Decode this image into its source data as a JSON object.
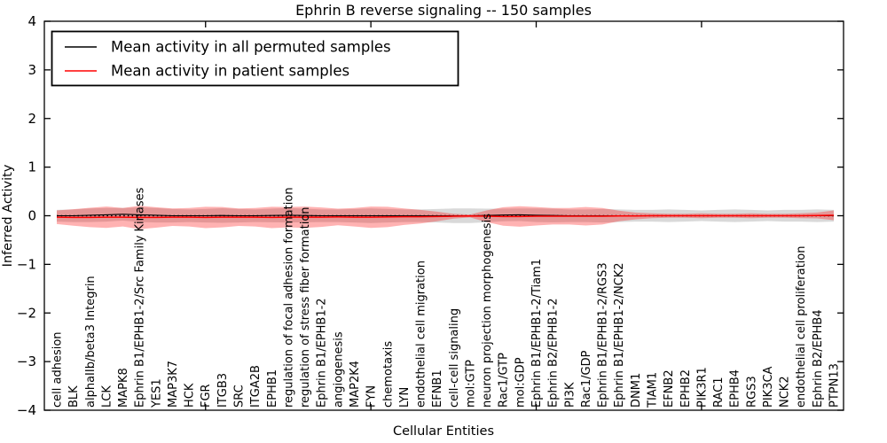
{
  "chart_data": {
    "type": "line",
    "title": "Ephrin B reverse signaling -- 150 samples",
    "xlabel": "Cellular Entities",
    "ylabel": "Inferred Activity",
    "ylim": [
      -4,
      4
    ],
    "yticks": [
      4,
      3,
      2,
      1,
      0,
      -1,
      -2,
      -3,
      -4
    ],
    "grid": false,
    "legend_position": "upper left",
    "categories": [
      "cell adhesion",
      "BLK",
      "alphaIIb/beta3 Integrin",
      "LCK",
      "MAPK8",
      "Ephrin B1/EPHB1-2/Src Family Kinases",
      "YES1",
      "MAP3K7",
      "HCK",
      "FGR",
      "ITGB3",
      "SRC",
      "ITGA2B",
      "EPHB1",
      "regulation of focal adhesion formation",
      "regulation of stress fiber formation",
      "Ephrin B1/EPHB1-2",
      "angiogenesis",
      "MAP2K4",
      "FYN",
      "chemotaxis",
      "LYN",
      "endothelial cell migration",
      "EFNB1",
      "cell-cell signaling",
      "mol:GTP",
      "neuron projection morphogenesis",
      "Rac1/GTP",
      "mol:GDP",
      "Ephrin B1/EPHB1-2/Tiam1",
      "Ephrin B2/EPHB1-2",
      "PI3K",
      "Rac1/GDP",
      "Ephrin B1/EPHB1-2/RGS3",
      "Ephrin B1/EPHB1-2/NCK2",
      "DNM1",
      "TIAM1",
      "EFNB2",
      "EPHB2",
      "PIK3R1",
      "RAC1",
      "EPHB4",
      "RGS3",
      "PIK3CA",
      "NCK2",
      "endothelial cell proliferation",
      "Ephrin B2/EPHB4",
      "PTPN13"
    ],
    "x_major_tick_indices": [
      9,
      19,
      29,
      39
    ],
    "series": [
      {
        "name": "Mean activity in all permuted samples",
        "color": "#000000",
        "style": "solid",
        "values": [
          0,
          0,
          0.01,
          0.02,
          0.03,
          0.02,
          0.01,
          0,
          0,
          0,
          0.005,
          0,
          0,
          0.005,
          0.01,
          0.005,
          0,
          0,
          0,
          0,
          0,
          0,
          0,
          0,
          0,
          0,
          0.005,
          0.015,
          0.02,
          0.01,
          0.005,
          0,
          0,
          0,
          0,
          0,
          0,
          0,
          0,
          0,
          0,
          0,
          0,
          0,
          0,
          0,
          0,
          0
        ]
      },
      {
        "name": "Mean activity in patient samples",
        "color": "#ff0000",
        "style": "solid",
        "values": [
          -0.03,
          -0.035,
          -0.035,
          -0.03,
          -0.03,
          -0.035,
          -0.035,
          -0.03,
          -0.03,
          -0.035,
          -0.03,
          -0.03,
          -0.03,
          -0.035,
          -0.03,
          -0.03,
          -0.03,
          -0.025,
          -0.03,
          -0.03,
          -0.025,
          -0.02,
          -0.02,
          -0.015,
          -0.01,
          -0.005,
          -0.01,
          -0.015,
          -0.015,
          -0.01,
          -0.01,
          -0.01,
          -0.01,
          -0.01,
          -0.005,
          -0.005,
          0,
          0,
          0,
          0,
          0,
          0,
          0,
          0,
          0,
          0,
          0.005,
          0.01
        ]
      }
    ],
    "bands": [
      {
        "name": "permuted-std-band",
        "center_series": 0,
        "color": "#808080",
        "opacity": 0.3,
        "half_widths": [
          0.12,
          0.13,
          0.14,
          0.14,
          0.13,
          0.15,
          0.15,
          0.14,
          0.13,
          0.14,
          0.15,
          0.14,
          0.13,
          0.14,
          0.15,
          0.14,
          0.13,
          0.13,
          0.14,
          0.15,
          0.14,
          0.13,
          0.13,
          0.14,
          0.15,
          0.15,
          0.14,
          0.13,
          0.13,
          0.14,
          0.14,
          0.13,
          0.13,
          0.14,
          0.13,
          0.12,
          0.12,
          0.13,
          0.12,
          0.11,
          0.12,
          0.13,
          0.12,
          0.11,
          0.12,
          0.12,
          0.13,
          0.12
        ]
      },
      {
        "name": "patient-std-band",
        "center_series": 1,
        "color": "#ff0000",
        "opacity": 0.3,
        "half_widths": [
          0.14,
          0.17,
          0.2,
          0.22,
          0.19,
          0.24,
          0.21,
          0.18,
          0.19,
          0.22,
          0.21,
          0.18,
          0.19,
          0.22,
          0.21,
          0.22,
          0.2,
          0.17,
          0.19,
          0.22,
          0.21,
          0.17,
          0.14,
          0.1,
          0.05,
          0.03,
          0.12,
          0.19,
          0.21,
          0.19,
          0.17,
          0.17,
          0.19,
          0.17,
          0.11,
          0.07,
          0.05,
          0.04,
          0.04,
          0.05,
          0.04,
          0.04,
          0.05,
          0.04,
          0.04,
          0.05,
          0.06,
          0.1
        ]
      }
    ],
    "zero_line": {
      "value": 0,
      "color": "#000000",
      "style": "dotted"
    }
  },
  "legend": {
    "entries": [
      {
        "label": "Mean activity in all permuted samples",
        "color": "#000000"
      },
      {
        "label": "Mean activity in patient samples",
        "color": "#ff0000"
      }
    ]
  },
  "labels": {
    "title": "Ephrin B reverse signaling -- 150 samples",
    "xlabel": "Cellular Entities",
    "ylabel": "Inferred Activity"
  }
}
